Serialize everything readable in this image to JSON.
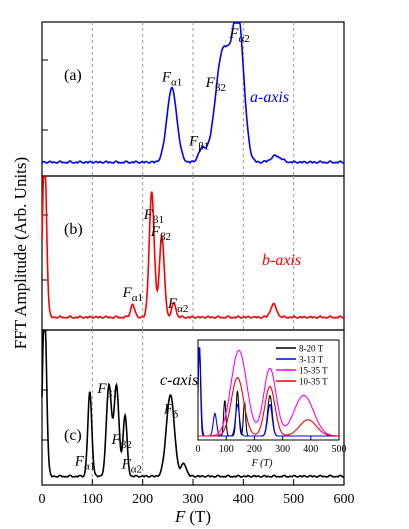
{
  "figure": {
    "ylabel": "FFT Amplitude (Arb. Units)",
    "xlabel": "F (T)",
    "xlabel_var": "F",
    "xlabel_unit": "(T)",
    "xticks": [
      0,
      100,
      200,
      300,
      400,
      500,
      600
    ],
    "xlim": [
      0,
      600
    ]
  },
  "chart_data": [
    {
      "type": "line",
      "panel": "(a)",
      "axis_label": "a-axis",
      "color": "#0000ff",
      "xlim": [
        0,
        600
      ],
      "grid_x": [
        100,
        200,
        300,
        400,
        500
      ],
      "peaks": [
        {
          "x": 258,
          "y": 0.46,
          "w": 10
        },
        {
          "x": 318,
          "y": 0.08,
          "w": 7
        },
        {
          "x": 360,
          "y": 0.7,
          "w": 15
        },
        {
          "x": 390,
          "y": 0.86,
          "w": 11
        },
        {
          "x": 465,
          "y": 0.04,
          "w": 10
        }
      ],
      "annotations": [
        {
          "text": "F",
          "sub": "α1",
          "x": 258
        },
        {
          "text": "F",
          "sub": "β1",
          "x": 312
        },
        {
          "text": "F",
          "sub": "β2",
          "x": 345
        },
        {
          "text": "F",
          "sub": "α2",
          "x": 392
        }
      ]
    },
    {
      "type": "line",
      "panel": "(b)",
      "axis_label": "b-axis",
      "color": "#ff0000",
      "xlim": [
        0,
        600
      ],
      "grid_x": [
        100,
        200,
        300,
        400,
        500
      ],
      "peaks": [
        {
          "x": 5,
          "y": 1.05,
          "w": 4
        },
        {
          "x": 180,
          "y": 0.08,
          "w": 4
        },
        {
          "x": 218,
          "y": 0.78,
          "w": 5
        },
        {
          "x": 238,
          "y": 0.5,
          "w": 5
        },
        {
          "x": 262,
          "y": 0.09,
          "w": 4
        },
        {
          "x": 460,
          "y": 0.08,
          "w": 6
        }
      ],
      "annotations": [
        {
          "text": "F",
          "sub": "α1",
          "x": 180
        },
        {
          "text": "F",
          "sub": "β1",
          "x": 222
        },
        {
          "text": "F",
          "sub": "β2",
          "x": 236
        },
        {
          "text": "F",
          "sub": "α2",
          "x": 270
        }
      ]
    },
    {
      "type": "line",
      "panel": "(c)",
      "axis_label": "c-axis",
      "color": "#000000",
      "xlim": [
        0,
        600
      ],
      "grid_x": [
        100,
        200
      ],
      "peaks": [
        {
          "x": 5,
          "y": 1.25,
          "w": 4
        },
        {
          "x": 95,
          "y": 0.6,
          "w": 4
        },
        {
          "x": 133,
          "y": 0.65,
          "w": 5
        },
        {
          "x": 148,
          "y": 0.64,
          "w": 5
        },
        {
          "x": 165,
          "y": 0.43,
          "w": 4
        },
        {
          "x": 255,
          "y": 0.58,
          "w": 8
        },
        {
          "x": 282,
          "y": 0.09,
          "w": 5
        }
      ],
      "annotations": [
        {
          "text": "F",
          "sub": "α1",
          "x": 85
        },
        {
          "text": "F",
          "sub": "β1",
          "x": 130
        },
        {
          "text": "F",
          "sub": "β2",
          "x": 158
        },
        {
          "text": "F",
          "sub": "α2",
          "x": 178
        },
        {
          "text": "F",
          "sub": "δ",
          "x": 262
        }
      ],
      "inset": {
        "type": "line",
        "xlabel": "F (T)",
        "xlim": [
          0,
          500
        ],
        "xticks": [
          0,
          100,
          200,
          300,
          400,
          500
        ],
        "legend_position": "top-right",
        "series": [
          {
            "name": "8-20 T",
            "color": "#000000",
            "peaks": [
              {
                "x": 5,
                "y": 1.0,
                "w": 4
              },
              {
                "x": 95,
                "y": 0.4,
                "w": 4
              },
              {
                "x": 140,
                "y": 0.5,
                "w": 5
              },
              {
                "x": 165,
                "y": 0.38,
                "w": 4
              },
              {
                "x": 255,
                "y": 0.45,
                "w": 8
              }
            ]
          },
          {
            "name": "3-13 T",
            "color": "#0000ff",
            "peaks": [
              {
                "x": 5,
                "y": 1.0,
                "w": 5
              },
              {
                "x": 60,
                "y": 0.25,
                "w": 6
              },
              {
                "x": 140,
                "y": 0.35,
                "w": 7
              },
              {
                "x": 255,
                "y": 0.35,
                "w": 8
              }
            ]
          },
          {
            "name": "15-35 T",
            "color": "#ff00ff",
            "peaks": [
              {
                "x": 145,
                "y": 0.95,
                "w": 28
              },
              {
                "x": 255,
                "y": 0.75,
                "w": 22
              },
              {
                "x": 375,
                "y": 0.45,
                "w": 35
              }
            ]
          },
          {
            "name": "10-35 T",
            "color": "#ff0000",
            "peaks": [
              {
                "x": 140,
                "y": 0.65,
                "w": 22
              },
              {
                "x": 255,
                "y": 0.55,
                "w": 18
              },
              {
                "x": 390,
                "y": 0.18,
                "w": 30
              }
            ]
          }
        ]
      }
    }
  ]
}
